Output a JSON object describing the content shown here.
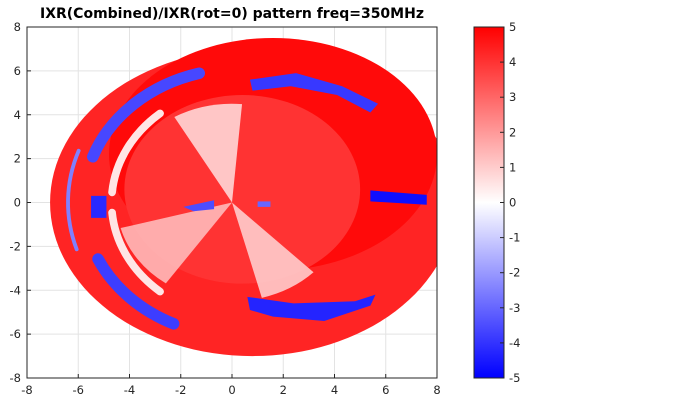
{
  "chart_data": {
    "type": "heatmap",
    "title": "IXR(Combined)/IXR(rot=0) pattern freq=350MHz",
    "xlabel": "",
    "ylabel": "",
    "xlim": [
      -8,
      8
    ],
    "ylim": [
      -8,
      8
    ],
    "xticks": [
      -8,
      -6,
      -4,
      -2,
      0,
      2,
      4,
      6,
      8
    ],
    "yticks": [
      8,
      6,
      4,
      2,
      0,
      -2,
      -4,
      -6,
      -8
    ],
    "grid": true,
    "colorbar": {
      "limits": [
        -5,
        5
      ],
      "ticks": [
        5,
        4,
        3,
        2,
        1,
        0,
        -1,
        -2,
        -3,
        -4,
        -5
      ],
      "colormap": [
        "#0000ff",
        "#ffffff",
        "#ff0000"
      ]
    },
    "regions": [
      {
        "shape": "ellipse",
        "cx": 0.8,
        "cy": 0,
        "rx": 7.9,
        "ry": 7.0,
        "value": 4.3,
        "label": "outer disk"
      },
      {
        "shape": "ellipse",
        "cx": 1.6,
        "cy": 2.2,
        "rx": 6.4,
        "ry": 5.3,
        "value": 4.8,
        "label": "upper-right lobe"
      },
      {
        "shape": "ellipse",
        "cx": 0.4,
        "cy": 0.6,
        "rx": 4.6,
        "ry": 4.3,
        "value": 4.0,
        "label": "central disk"
      },
      {
        "shape": "wedge",
        "cx": 0,
        "cy": 0,
        "r": 4.5,
        "from_deg": 85,
        "to_deg": 120,
        "value": 0.6
      },
      {
        "shape": "wedge",
        "cx": 0,
        "cy": 0,
        "r": 4.5,
        "from_deg": 195,
        "to_deg": 235,
        "value": 1.2
      },
      {
        "shape": "wedge",
        "cx": 0,
        "cy": 0,
        "r": 4.5,
        "from_deg": 285,
        "to_deg": 315,
        "value": 0.8
      },
      {
        "shape": "arc",
        "cx": 0.3,
        "cy": 0,
        "r": 6.1,
        "from_deg": 105,
        "to_deg": 160,
        "width": 0.45,
        "value": -3.6
      },
      {
        "shape": "arc",
        "cx": 0.3,
        "cy": 0,
        "r": 6.1,
        "from_deg": 205,
        "to_deg": 245,
        "width": 0.45,
        "value": -3.8
      },
      {
        "shape": "arc",
        "cx": 0.5,
        "cy": 0,
        "r": 6.9,
        "from_deg": 160,
        "to_deg": 198,
        "width": 0.15,
        "value": -2.5
      },
      {
        "shape": "arc",
        "cx": 0.6,
        "cy": 0,
        "r": 5.3,
        "from_deg": 130,
        "to_deg": 175,
        "width": 0.3,
        "value": 0.5
      },
      {
        "shape": "arc",
        "cx": 0.6,
        "cy": 0,
        "r": 5.3,
        "from_deg": 185,
        "to_deg": 230,
        "width": 0.3,
        "value": 0.5
      },
      {
        "shape": "patch",
        "points": [
          [
            0.7,
            5.6
          ],
          [
            2.5,
            5.9
          ],
          [
            4.3,
            5.3
          ],
          [
            5.7,
            4.5
          ],
          [
            5.4,
            4.1
          ],
          [
            4.1,
            4.9
          ],
          [
            2.3,
            5.3
          ],
          [
            0.8,
            5.1
          ]
        ],
        "value": -3.9
      },
      {
        "shape": "patch",
        "points": [
          [
            0.6,
            -4.3
          ],
          [
            2.4,
            -4.6
          ],
          [
            4.8,
            -4.5
          ],
          [
            5.6,
            -4.2
          ],
          [
            5.4,
            -4.7
          ],
          [
            3.6,
            -5.4
          ],
          [
            1.6,
            -5.2
          ],
          [
            0.7,
            -4.9
          ]
        ],
        "value": -4.3
      },
      {
        "shape": "patch",
        "points": [
          [
            5.4,
            0.55
          ],
          [
            7.6,
            0.35
          ],
          [
            7.6,
            -0.1
          ],
          [
            5.4,
            0.05
          ]
        ],
        "value": -4.7
      },
      {
        "shape": "patch",
        "points": [
          [
            -5.5,
            0.3
          ],
          [
            -4.9,
            0.3
          ],
          [
            -4.9,
            -0.7
          ],
          [
            -5.5,
            -0.7
          ]
        ],
        "value": -4.2
      },
      {
        "shape": "patch",
        "points": [
          [
            -1.9,
            -0.2
          ],
          [
            -0.7,
            0.1
          ],
          [
            -0.7,
            -0.3
          ],
          [
            -1.5,
            -0.4
          ]
        ],
        "value": -3.5
      },
      {
        "shape": "patch",
        "points": [
          [
            1.0,
            0.05
          ],
          [
            1.5,
            0.05
          ],
          [
            1.5,
            -0.2
          ],
          [
            1.0,
            -0.2
          ]
        ],
        "value": -3.0
      }
    ]
  }
}
